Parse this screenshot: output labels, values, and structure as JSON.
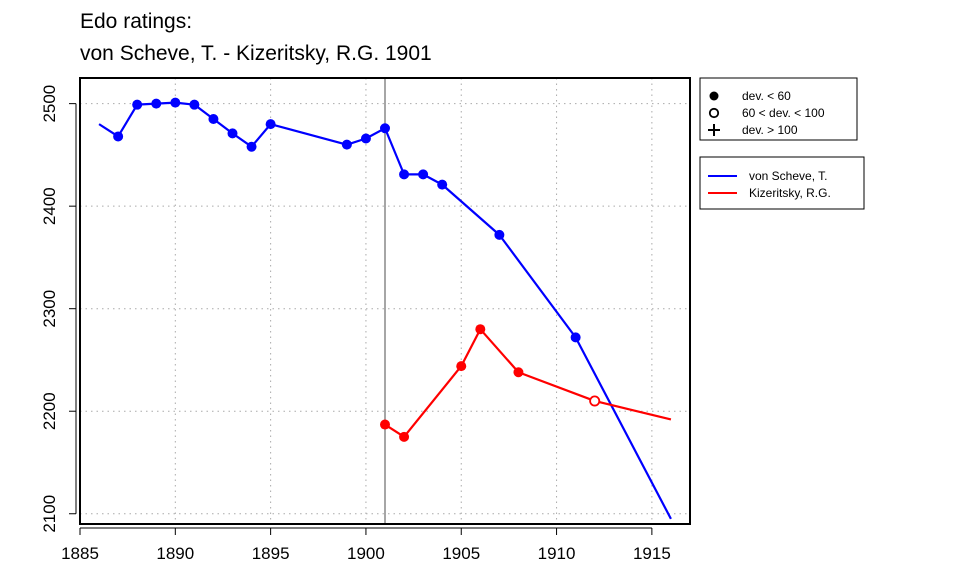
{
  "chart_data": {
    "type": "line",
    "title": "Edo ratings:",
    "subtitle": "von Scheve, T. - Kizeritsky, R.G. 1901",
    "xlim": [
      1885,
      1917
    ],
    "ylim": [
      2090,
      2525
    ],
    "x_ticks": [
      1885,
      1890,
      1895,
      1900,
      1905,
      1910,
      1915
    ],
    "y_ticks": [
      2100,
      2200,
      2300,
      2400,
      2500
    ],
    "grid": "dotted",
    "reference_line_x": 1901,
    "marker_legend": [
      {
        "symbol": "filled-circle",
        "label": "dev. < 60"
      },
      {
        "symbol": "open-circle",
        "label": "60 < dev. < 100"
      },
      {
        "symbol": "plus",
        "label": "dev. > 100"
      }
    ],
    "series": [
      {
        "name": "von Scheve, T.",
        "color": "#0000ff",
        "points": [
          {
            "x": 1886,
            "y": 2480,
            "marker": "none"
          },
          {
            "x": 1887,
            "y": 2468,
            "marker": "filled"
          },
          {
            "x": 1888,
            "y": 2499,
            "marker": "filled"
          },
          {
            "x": 1889,
            "y": 2500,
            "marker": "filled"
          },
          {
            "x": 1890,
            "y": 2501,
            "marker": "filled"
          },
          {
            "x": 1891,
            "y": 2499,
            "marker": "filled"
          },
          {
            "x": 1892,
            "y": 2485,
            "marker": "filled"
          },
          {
            "x": 1893,
            "y": 2471,
            "marker": "filled"
          },
          {
            "x": 1894,
            "y": 2458,
            "marker": "filled"
          },
          {
            "x": 1895,
            "y": 2480,
            "marker": "filled"
          },
          {
            "x": 1899,
            "y": 2460,
            "marker": "filled"
          },
          {
            "x": 1900,
            "y": 2466,
            "marker": "filled"
          },
          {
            "x": 1901,
            "y": 2476,
            "marker": "filled"
          },
          {
            "x": 1902,
            "y": 2431,
            "marker": "filled"
          },
          {
            "x": 1903,
            "y": 2431,
            "marker": "filled"
          },
          {
            "x": 1904,
            "y": 2421,
            "marker": "filled"
          },
          {
            "x": 1907,
            "y": 2372,
            "marker": "filled"
          },
          {
            "x": 1911,
            "y": 2272,
            "marker": "filled"
          },
          {
            "x": 1916,
            "y": 2095,
            "marker": "none"
          }
        ]
      },
      {
        "name": "Kizeritsky, R.G.",
        "color": "#ff0000",
        "points": [
          {
            "x": 1901,
            "y": 2187,
            "marker": "filled"
          },
          {
            "x": 1902,
            "y": 2175,
            "marker": "filled"
          },
          {
            "x": 1905,
            "y": 2244,
            "marker": "filled"
          },
          {
            "x": 1906,
            "y": 2280,
            "marker": "filled"
          },
          {
            "x": 1908,
            "y": 2238,
            "marker": "filled"
          },
          {
            "x": 1912,
            "y": 2210,
            "marker": "open"
          },
          {
            "x": 1916,
            "y": 2192,
            "marker": "none"
          }
        ]
      }
    ]
  }
}
